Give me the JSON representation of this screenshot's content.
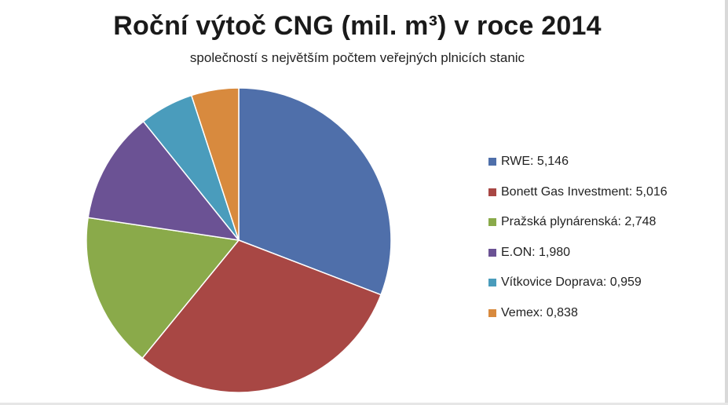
{
  "chart_data": {
    "type": "pie",
    "title": "Roční výtoč CNG (mil. m³) v roce 2014",
    "subtitle": "společností s největším počtem veřejných plnicích stanic",
    "legend_position": "right",
    "slices": [
      {
        "label": "RWE",
        "value": 5.146,
        "display": "RWE: 5,146",
        "color": "#4f6faa"
      },
      {
        "label": "Bonett Gas Investment",
        "value": 5.016,
        "display": "Bonett Gas Investment: 5,016",
        "color": "#a84744"
      },
      {
        "label": "Pražská plynárenská",
        "value": 2.748,
        "display": "Pražská plynárenská: 2,748",
        "color": "#8aaa4a"
      },
      {
        "label": "E.ON",
        "value": 1.98,
        "display": "E.ON: 1,980",
        "color": "#6b5294"
      },
      {
        "label": "Vítkovice Doprava",
        "value": 0.959,
        "display": "Vítkovice Doprava: 0,959",
        "color": "#4a9cbc"
      },
      {
        "label": "Vemex",
        "value": 0.838,
        "display": "Vemex: 0,838",
        "color": "#d88a3e"
      }
    ]
  }
}
